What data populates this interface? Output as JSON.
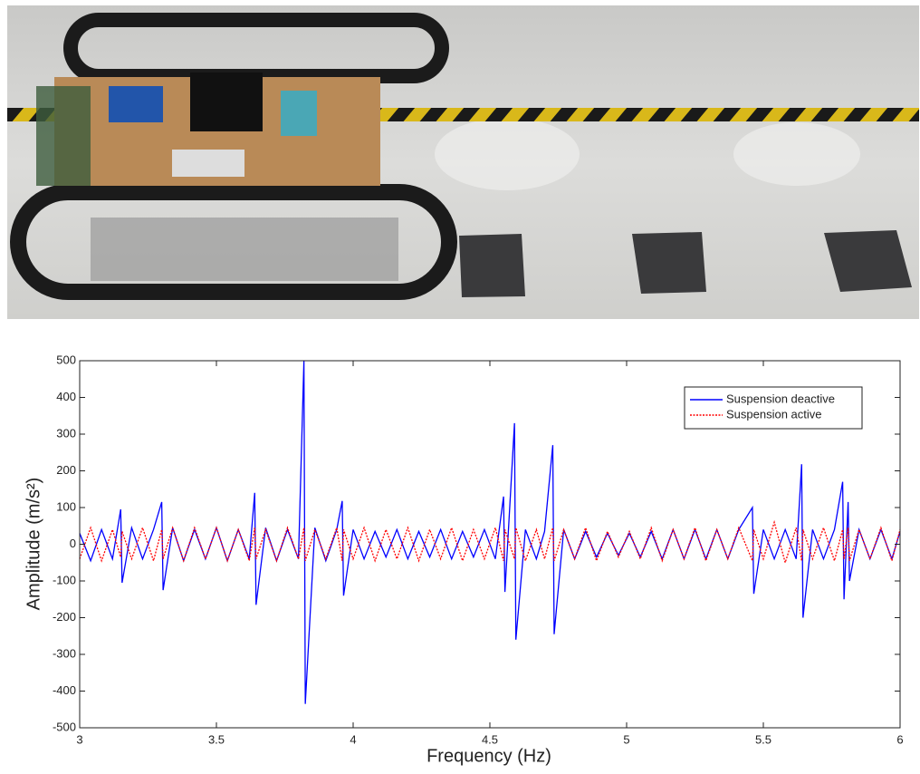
{
  "chart_data": {
    "type": "line",
    "xlabel": "Frequency (Hz)",
    "ylabel": "Amplitude (m/s²)",
    "x": [
      3.0,
      3.04,
      3.08,
      3.12,
      3.15,
      3.155,
      3.19,
      3.23,
      3.27,
      3.3,
      3.305,
      3.34,
      3.38,
      3.42,
      3.46,
      3.5,
      3.54,
      3.58,
      3.62,
      3.64,
      3.645,
      3.68,
      3.72,
      3.76,
      3.8,
      3.82,
      3.825,
      3.86,
      3.9,
      3.94,
      3.96,
      3.965,
      4.0,
      4.04,
      4.08,
      4.12,
      4.16,
      4.2,
      4.24,
      4.28,
      4.32,
      4.36,
      4.4,
      4.44,
      4.48,
      4.52,
      4.55,
      4.555,
      4.59,
      4.595,
      4.63,
      4.67,
      4.7,
      4.73,
      4.735,
      4.77,
      4.81,
      4.85,
      4.89,
      4.93,
      4.97,
      5.01,
      5.05,
      5.09,
      5.13,
      5.17,
      5.21,
      5.25,
      5.29,
      5.33,
      5.37,
      5.41,
      5.46,
      5.465,
      5.5,
      5.54,
      5.58,
      5.62,
      5.64,
      5.645,
      5.68,
      5.72,
      5.76,
      5.79,
      5.795,
      5.81,
      5.815,
      5.85,
      5.89,
      5.93,
      5.97,
      6.0
    ],
    "series": [
      {
        "name": "Suspension deactive",
        "color": "#0000ff",
        "linestyle": "solid",
        "values": [
          30,
          -45,
          40,
          -40,
          95,
          -105,
          45,
          -40,
          40,
          115,
          -125,
          45,
          -45,
          40,
          -40,
          45,
          -45,
          40,
          -40,
          140,
          -165,
          45,
          -45,
          40,
          -40,
          500,
          -435,
          45,
          -45,
          40,
          118,
          -140,
          40,
          -40,
          35,
          -35,
          40,
          -40,
          35,
          -35,
          40,
          -40,
          35,
          -35,
          40,
          -40,
          130,
          -130,
          330,
          -260,
          40,
          -40,
          35,
          270,
          -245,
          40,
          -40,
          35,
          -35,
          30,
          -30,
          30,
          -35,
          35,
          -40,
          40,
          -40,
          40,
          -40,
          40,
          -40,
          40,
          100,
          -135,
          40,
          -40,
          40,
          -40,
          218,
          -200,
          40,
          -40,
          40,
          170,
          -150,
          115,
          -100,
          40,
          -40,
          40,
          -40,
          35
        ]
      },
      {
        "name": "Suspension active",
        "color": "#ff0000",
        "linestyle": "dotted",
        "values": [
          -40,
          45,
          -45,
          40,
          -35,
          35,
          -40,
          45,
          -45,
          40,
          -40,
          45,
          -45,
          45,
          -40,
          45,
          -45,
          40,
          -45,
          45,
          -40,
          40,
          -45,
          45,
          -40,
          45,
          -45,
          40,
          -40,
          45,
          -45,
          40,
          -40,
          45,
          -45,
          40,
          -40,
          45,
          -45,
          40,
          -40,
          45,
          -45,
          40,
          -40,
          45,
          -45,
          40,
          -40,
          45,
          -45,
          40,
          -40,
          45,
          -45,
          40,
          -40,
          45,
          -45,
          35,
          -35,
          35,
          -40,
          45,
          -45,
          40,
          -40,
          45,
          -45,
          40,
          -40,
          45,
          -45,
          40,
          -40,
          60,
          -50,
          45,
          -45,
          40,
          -40,
          45,
          -45,
          40,
          -40,
          45,
          -45,
          40,
          -40,
          45,
          -45,
          40
        ]
      }
    ],
    "xlim": [
      3,
      6
    ],
    "xticks": [
      3,
      3.5,
      4,
      4.5,
      5,
      5.5,
      6
    ],
    "ylim": [
      -500,
      500
    ],
    "yticks": [
      -500,
      -400,
      -300,
      -200,
      -100,
      0,
      100,
      200,
      300,
      400,
      500
    ],
    "grid": false,
    "legend": "upper right"
  }
}
